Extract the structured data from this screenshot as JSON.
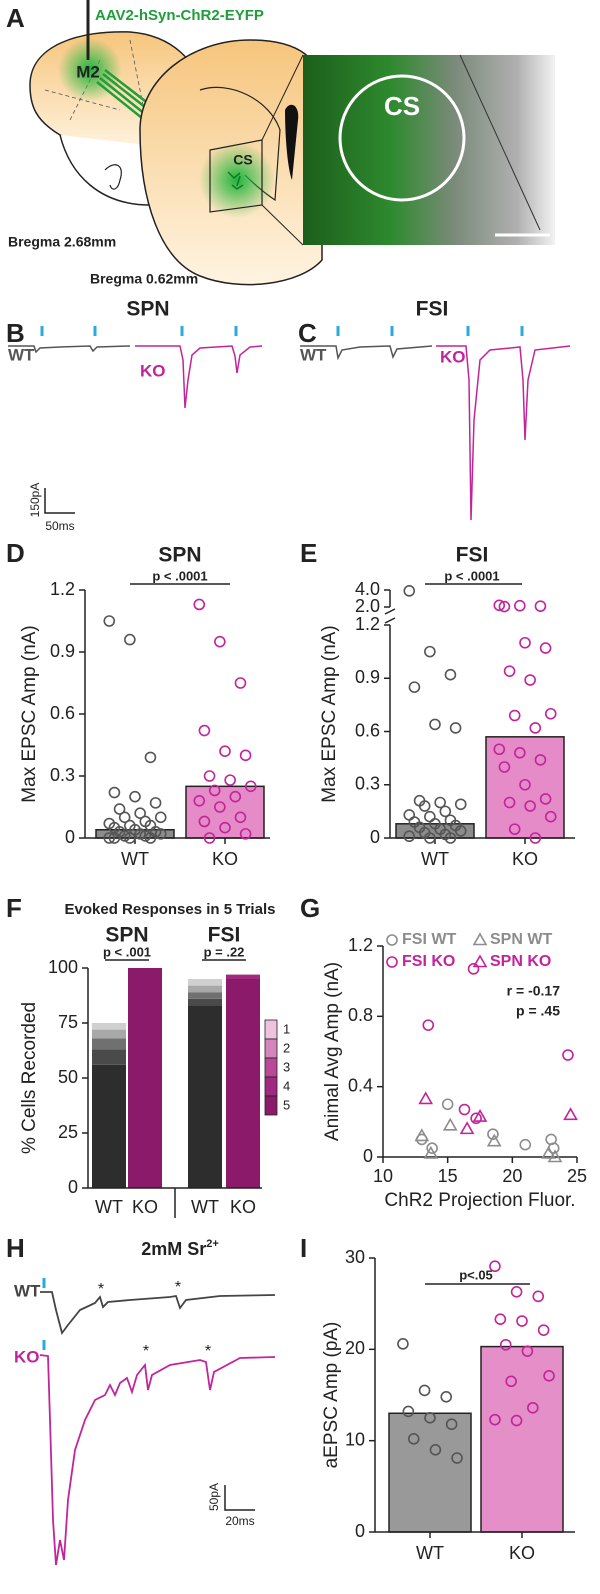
{
  "panel_labels": [
    "A",
    "B",
    "C",
    "D",
    "E",
    "F",
    "G",
    "H",
    "I"
  ],
  "schematic": {
    "virus": "AAV2-hSyn-ChR2-EYFP",
    "injection_site": "M2",
    "target": "CS",
    "target_image": "CS",
    "bregma_front": "Bregma 2.68mm",
    "bregma_back": "Bregma 0.62mm"
  },
  "traces": {
    "B": {
      "title": "SPN",
      "wt": "WT",
      "ko": "KO"
    },
    "C": {
      "title": "FSI",
      "wt": "WT",
      "ko": "KO"
    },
    "scale_BC": {
      "y": "150pA",
      "x": "50ms"
    },
    "H": {
      "title": "2mM Sr",
      "title_sup": "2+",
      "wt": "WT",
      "ko": "KO",
      "asterisk": "*"
    },
    "scale_H": {
      "y": "50pA",
      "x": "20ms"
    }
  },
  "chart_data": [
    {
      "type": "bar",
      "title": "SPN",
      "annotation": "p < .0001",
      "ylabel": "Max EPSC Amp (nA)",
      "categories": [
        "WT",
        "KO"
      ],
      "values": [
        0.04,
        0.25
      ],
      "colors": [
        "#8c8c8c",
        "#e48bc8"
      ],
      "point_colors": [
        "#555555",
        "#c2249b"
      ],
      "points": [
        [
          1.05,
          0.96,
          0.39,
          0.22,
          0.2,
          0.17,
          0.14,
          0.12,
          0.1,
          0.1,
          0.08,
          0.07,
          0.06,
          0.06,
          0.05,
          0.04,
          0.03,
          0.03,
          0.02,
          0.02,
          0.01,
          0.01,
          0,
          0,
          0,
          0
        ],
        [
          1.13,
          0.95,
          0.75,
          0.52,
          0.42,
          0.4,
          0.3,
          0.28,
          0.25,
          0.23,
          0.2,
          0.18,
          0.15,
          0.1,
          0.08,
          0.05,
          0.02,
          0
        ]
      ],
      "ylim": [
        0,
        1.2
      ],
      "yticks": [
        0,
        0.3,
        0.6,
        0.9,
        1.2
      ]
    },
    {
      "type": "bar",
      "title": "FSI",
      "annotation": "p < .0001",
      "ylabel": "Max EPSC Amp (nA)",
      "categories": [
        "WT",
        "KO"
      ],
      "values": [
        0.08,
        0.57
      ],
      "colors": [
        "#8c8c8c",
        "#e48bc8"
      ],
      "point_colors": [
        "#555555",
        "#c2249b"
      ],
      "points": [
        [
          3.9,
          1.05,
          0.92,
          0.85,
          0.64,
          0.62,
          0.21,
          0.2,
          0.19,
          0.18,
          0.15,
          0.13,
          0.12,
          0.1,
          0.09,
          0.08,
          0.07,
          0.06,
          0.05,
          0.04,
          0.03,
          0.02,
          0.01,
          0,
          0
        ],
        [
          2.2,
          2.15,
          2.1,
          2.05,
          1.1,
          1.07,
          0.94,
          0.89,
          0.7,
          0.69,
          0.62,
          0.5,
          0.48,
          0.44,
          0.4,
          0.3,
          0.22,
          0.2,
          0.18,
          0.12,
          0.05,
          0
        ]
      ],
      "ylim": [
        0,
        4
      ],
      "axis_break": [
        1.2,
        2
      ],
      "yticks": [
        0,
        0.3,
        0.6,
        0.9,
        1.2,
        {
          "value": 2,
          "label": "2.0"
        },
        {
          "value": 4,
          "label": "4.0"
        }
      ]
    },
    {
      "type": "stacked_bar",
      "title": "Evoked Responses in 5 Trials",
      "ylabel": "% Cells Recorded",
      "groups": [
        {
          "name": "SPN",
          "annotation": "p < .001"
        },
        {
          "name": "FSI",
          "annotation": "p = .22"
        }
      ],
      "categories": [
        "WT",
        "KO",
        "WT",
        "KO"
      ],
      "series": [
        {
          "name": "1",
          "colors": [
            "#d0d0d0",
            "#efc3e0",
            "#d0d0d0",
            "#efc3e0"
          ],
          "values": [
            3,
            0,
            3,
            0
          ]
        },
        {
          "name": "2",
          "colors": [
            "#a8a8a8",
            "#d684be",
            "#a8a8a8",
            "#d684be"
          ],
          "values": [
            4,
            0,
            3,
            0
          ]
        },
        {
          "name": "3",
          "colors": [
            "#707070",
            "#b84a98",
            "#707070",
            "#b84a98"
          ],
          "values": [
            5,
            0,
            3,
            0
          ]
        },
        {
          "name": "4",
          "colors": [
            "#4a4a4a",
            "#a02a80",
            "#4a4a4a",
            "#a02a80"
          ],
          "values": [
            7,
            0,
            3,
            2
          ]
        },
        {
          "name": "5",
          "colors": [
            "#2d2d2d",
            "#8b1a6b",
            "#2d2d2d",
            "#8b1a6b"
          ],
          "values": [
            56,
            100,
            83,
            95
          ]
        }
      ],
      "ylim": [
        0,
        100
      ],
      "yticks": [
        0,
        25,
        50,
        75,
        100
      ]
    },
    {
      "type": "scatter",
      "xlabel": "ChR2 Projection Fluor.",
      "ylabel": "Animal Avg Amp (nA)",
      "annotations": [
        "r = -0.17",
        "p = .45"
      ],
      "series": [
        {
          "name": "FSI WT",
          "color": "#8c8c8c",
          "marker": "circle",
          "x": [
            13,
            13.8,
            15,
            18.5,
            21,
            23,
            23.2
          ],
          "values": [
            0.1,
            0.05,
            0.3,
            0.13,
            0.07,
            0.1,
            0.05
          ]
        },
        {
          "name": "SPN WT",
          "color": "#8c8c8c",
          "marker": "triangle",
          "x": [
            13,
            13.7,
            15.2,
            18.6,
            22.8,
            23.3
          ],
          "values": [
            0.12,
            0.02,
            0.18,
            0.09,
            0.02,
            0
          ]
        },
        {
          "name": "FSI KO",
          "color": "#c2249b",
          "marker": "circle",
          "x": [
            13.5,
            16.3,
            17,
            17.2,
            24.3
          ],
          "values": [
            0.75,
            0.27,
            1.07,
            0.22,
            0.58
          ]
        },
        {
          "name": "SPN KO",
          "color": "#c2249b",
          "marker": "triangle",
          "x": [
            13.3,
            16.5,
            17.5,
            24.5
          ],
          "values": [
            0.33,
            0.16,
            0.23,
            0.24
          ]
        }
      ],
      "xlim": [
        10,
        25
      ],
      "xticks": [
        10,
        15,
        20,
        25
      ],
      "ylim": [
        0,
        1.2
      ],
      "yticks": [
        0,
        0.4,
        0.8,
        1.2
      ]
    },
    {
      "type": "bar",
      "annotation": "p<.05",
      "ylabel": "aEPSC Amp (pA)",
      "categories": [
        "WT",
        "KO"
      ],
      "values": [
        13,
        20.3
      ],
      "colors": [
        "#999999",
        "#e58fc8"
      ],
      "point_colors": [
        "#555555",
        "#c2249b"
      ],
      "points": [
        [
          20.6,
          15.5,
          14.8,
          13.2,
          12.5,
          11.8,
          10.2,
          9,
          8.1
        ],
        [
          29.1,
          26.3,
          25.8,
          23.3,
          23.1,
          22.1,
          20.5,
          19.8,
          17.1,
          16.5,
          13.6,
          12.3,
          12.2
        ]
      ],
      "ylim": [
        0,
        30
      ],
      "yticks": [
        0,
        10,
        20,
        30
      ]
    }
  ]
}
